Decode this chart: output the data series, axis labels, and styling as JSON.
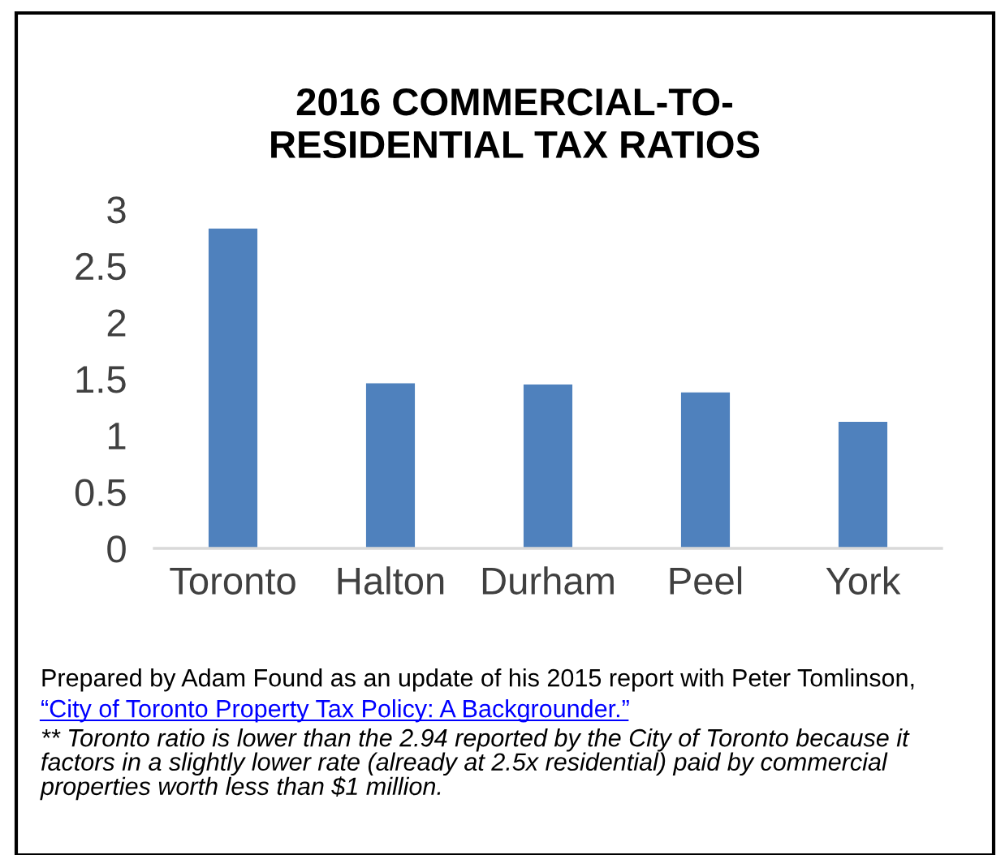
{
  "chart_data": {
    "type": "bar",
    "title": "2016 COMMERCIAL-TO-\nRESIDENTIAL TAX RATIOS",
    "categories": [
      "Toronto",
      "Halton",
      "Durham",
      "Peel",
      "York"
    ],
    "values": [
      2.83,
      1.46,
      1.45,
      1.38,
      1.12
    ],
    "color": "#4f81bd",
    "ylim": [
      0,
      3
    ],
    "yticks": [
      0,
      0.5,
      1,
      1.5,
      2,
      2.5,
      3
    ],
    "grid": false,
    "legend": false,
    "annotations": [
      "Prepared by Adam Found as an update of his 2015 report with Peter Tomlinson,",
      "“City of Toronto Property Tax Policy: A Backgrounder.”",
      "** Toronto ratio is lower than the 2.94 reported by the City of Toronto because it\nfactors in a slightly lower rate (already at 2.5x residential) paid by commercial\nproperties worth less than $1 million."
    ]
  }
}
